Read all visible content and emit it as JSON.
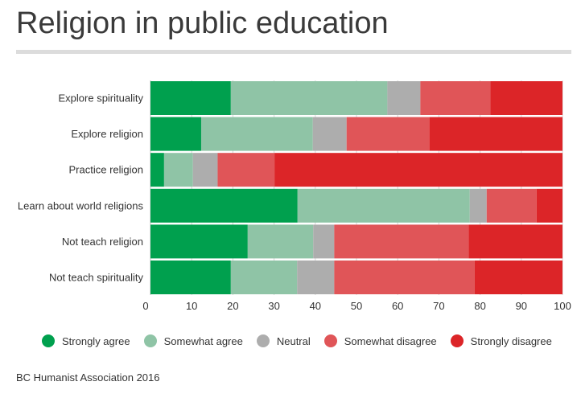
{
  "title": "Religion in public education",
  "source": "BC Humanist Association 2016",
  "chart_data": {
    "type": "bar",
    "orientation": "horizontal",
    "stacked": true,
    "title": "Religion in public education",
    "categories": [
      "Explore spirituality",
      "Explore religion",
      "Practice religion",
      "Learn about world religions",
      "Not teach religion",
      "Not teach spirituality"
    ],
    "series": [
      {
        "name": "Strongly agree",
        "color": "#00a04e",
        "values": [
          19.5,
          12.3,
          3.3,
          35.7,
          23.6,
          19.5
        ]
      },
      {
        "name": "Somewhat agree",
        "color": "#8fc4a6",
        "values": [
          38.0,
          27.1,
          7.0,
          41.8,
          15.9,
          16.1
        ]
      },
      {
        "name": "Neutral",
        "color": "#adadad",
        "values": [
          8.0,
          8.2,
          6.0,
          4.1,
          5.1,
          9.0
        ]
      },
      {
        "name": "Somewhat disagree",
        "color": "#e05558",
        "values": [
          17.0,
          20.1,
          13.8,
          12.1,
          32.6,
          34.1
        ]
      },
      {
        "name": "Strongly disagree",
        "color": "#dc2528",
        "values": [
          17.5,
          32.3,
          69.9,
          6.3,
          22.8,
          21.3
        ]
      }
    ],
    "xlim": [
      0,
      100
    ],
    "xticks": [
      "0",
      "10",
      "20",
      "30",
      "40",
      "50",
      "60",
      "70",
      "80",
      "90",
      "100"
    ],
    "xlabel": "",
    "ylabel": "",
    "grid": true,
    "legend_position": "bottom"
  }
}
